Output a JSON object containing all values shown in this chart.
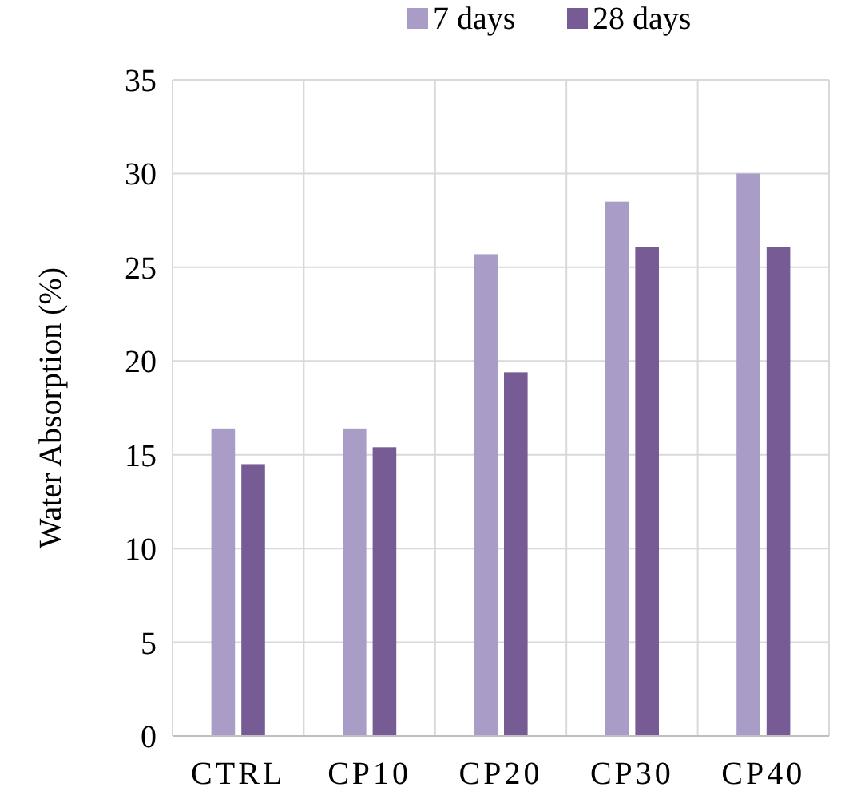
{
  "chart_data": {
    "type": "bar",
    "ylabel": "Water Absorption (%)",
    "categories": [
      "CTRL",
      "CP10",
      "CP20",
      "CP30",
      "CP40"
    ],
    "series": [
      {
        "name": "7 days",
        "color": "#a99cc6",
        "values": [
          16.4,
          16.4,
          25.7,
          28.5,
          30.0
        ]
      },
      {
        "name": "28 days",
        "color": "#775b94",
        "values": [
          14.5,
          15.4,
          19.4,
          26.1,
          26.1
        ]
      }
    ],
    "ylim": [
      0,
      35
    ],
    "yticks": [
      0,
      5,
      10,
      15,
      20,
      25,
      30,
      35
    ],
    "grid": true,
    "legend": "top"
  }
}
